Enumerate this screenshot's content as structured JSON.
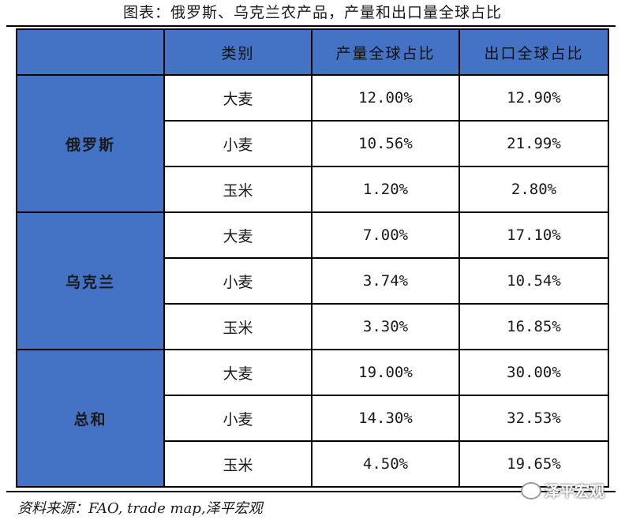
{
  "title": "图表：俄罗斯、乌克兰农产品，产量和出口量全球占比",
  "table": {
    "headers": [
      "",
      "类别",
      "产量全球占比",
      "出口全球占比"
    ],
    "groups": [
      {
        "name": "俄罗斯",
        "rows": [
          {
            "category": "大麦",
            "production": "12.00%",
            "export": "12.90%"
          },
          {
            "category": "小麦",
            "production": "10.56%",
            "export": "21.99%"
          },
          {
            "category": "玉米",
            "production": "1.20%",
            "export": "2.80%"
          }
        ]
      },
      {
        "name": "乌克兰",
        "rows": [
          {
            "category": "大麦",
            "production": "7.00%",
            "export": "17.10%"
          },
          {
            "category": "小麦",
            "production": "3.74%",
            "export": "10.54%"
          },
          {
            "category": "玉米",
            "production": "3.30%",
            "export": "16.85%"
          }
        ]
      },
      {
        "name": "总和",
        "rows": [
          {
            "category": "大麦",
            "production": "19.00%",
            "export": "30.00%"
          },
          {
            "category": "小麦",
            "production": "14.30%",
            "export": "32.53%"
          },
          {
            "category": "玉米",
            "production": "4.50%",
            "export": "19.65%"
          }
        ]
      }
    ]
  },
  "source": "资料来源：FAO, trade map,泽平宏观",
  "watermark": "泽平宏观",
  "colors": {
    "header_fill": "#4472c4"
  }
}
